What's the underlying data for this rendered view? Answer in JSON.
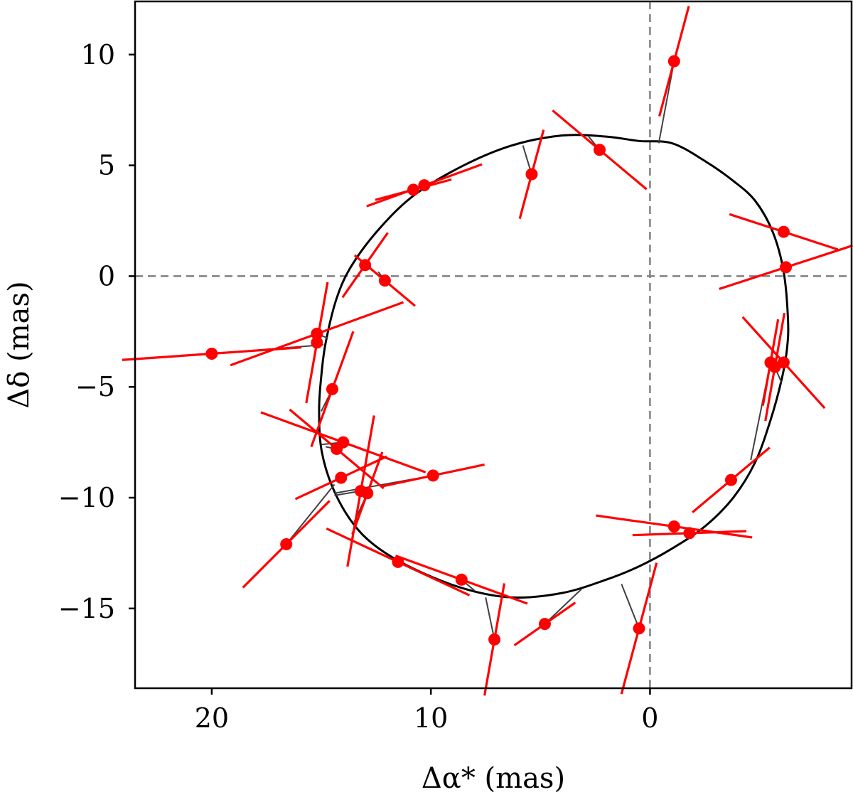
{
  "chart_data": {
    "type": "scatter",
    "xlabel": "Δα* (mas)",
    "ylabel": "Δδ (mas)",
    "x_inverted": true,
    "xlim": [
      23.5,
      -9.2
    ],
    "ylim": [
      -18.6,
      12.4
    ],
    "x_ticks": [
      20,
      10,
      0
    ],
    "x_tick_labels": [
      "20",
      "10",
      "0"
    ],
    "y_ticks": [
      10,
      5,
      0,
      -5,
      -10,
      -15
    ],
    "y_tick_labels": [
      "10",
      "5",
      "0",
      "−5",
      "−10",
      "−15"
    ],
    "reference_lines": [
      {
        "axis": "x",
        "value": 0,
        "style": "dashed",
        "color": "#808080"
      },
      {
        "axis": "y",
        "value": 0,
        "style": "dashed",
        "color": "#808080"
      }
    ],
    "grid": false,
    "colors": {
      "points": "#ff0000",
      "orbit": "#000000",
      "connectors": "#404040",
      "reference": "#808080"
    },
    "orbit": [
      [
        -1.0,
        6.0
      ],
      [
        -2.5,
        5.2
      ],
      [
        -3.8,
        4.3
      ],
      [
        -4.8,
        3.4
      ],
      [
        -5.6,
        2.0
      ],
      [
        -6.1,
        0.2
      ],
      [
        -6.3,
        -2.0
      ],
      [
        -6.25,
        -3.3
      ],
      [
        -6.0,
        -4.7
      ],
      [
        -5.5,
        -6.5
      ],
      [
        -4.8,
        -8.4
      ],
      [
        -3.8,
        -10.0
      ],
      [
        -2.5,
        -11.3
      ],
      [
        -1.0,
        -12.3
      ],
      [
        0.5,
        -13.1
      ],
      [
        2.0,
        -13.7
      ],
      [
        4.0,
        -14.3
      ],
      [
        6.3,
        -14.5
      ],
      [
        8.5,
        -14.1
      ],
      [
        10.8,
        -13.2
      ],
      [
        12.5,
        -12.2
      ],
      [
        13.6,
        -11.1
      ],
      [
        14.5,
        -9.5
      ],
      [
        15.0,
        -7.8
      ],
      [
        15.1,
        -6.0
      ],
      [
        15.0,
        -4.5
      ],
      [
        14.8,
        -3.0
      ],
      [
        14.3,
        -1.0
      ],
      [
        13.6,
        0.5
      ],
      [
        12.3,
        2.2
      ],
      [
        10.7,
        3.7
      ],
      [
        8.5,
        5.0
      ],
      [
        6.3,
        5.9
      ],
      [
        4.0,
        6.35
      ],
      [
        2.0,
        6.3
      ],
      [
        0.5,
        6.1
      ],
      [
        -1.0,
        6.0
      ]
    ],
    "points": [
      {
        "x": -1.1,
        "y": 9.7,
        "model": [
          -0.4,
          6.0
        ],
        "err_angle": 75,
        "err_len": 2.6
      },
      {
        "x": 2.3,
        "y": 5.7,
        "model": [
          2.8,
          6.3
        ],
        "err_angle": -40,
        "err_len": 2.8
      },
      {
        "x": 5.4,
        "y": 4.6,
        "model": [
          5.8,
          5.9
        ],
        "err_angle": 75,
        "err_len": 2.1
      },
      {
        "x": 10.3,
        "y": 4.1,
        "model": [
          10.3,
          4.1
        ],
        "err_angle": 20,
        "err_len": 2.8
      },
      {
        "x": 10.8,
        "y": 3.9,
        "model": [
          10.8,
          3.9
        ],
        "err_angle": 15,
        "err_len": 1.8
      },
      {
        "x": 13.0,
        "y": 0.5,
        "model": [
          13.0,
          0.5
        ],
        "err_angle": 55,
        "err_len": 1.8
      },
      {
        "x": 12.1,
        "y": -0.2,
        "model": [
          12.4,
          0.2
        ],
        "err_angle": -40,
        "err_len": 1.8
      },
      {
        "x": 15.2,
        "y": -2.6,
        "model": [
          14.7,
          -2.8
        ],
        "err_angle": 20,
        "err_len": 4.2
      },
      {
        "x": 15.2,
        "y": -3.0,
        "model": [
          15.2,
          -3.0
        ],
        "err_angle": 80,
        "err_len": 2.8
      },
      {
        "x": 20.0,
        "y": -3.5,
        "model": [
          14.9,
          -3.1
        ],
        "err_angle": 4,
        "err_len": 4.1
      },
      {
        "x": 14.5,
        "y": -5.1,
        "model": [
          15.0,
          -6.1
        ],
        "err_angle": 70,
        "err_len": 2.8
      },
      {
        "x": 14.0,
        "y": -7.5,
        "model": [
          15.0,
          -7.6
        ],
        "err_angle": -20,
        "err_len": 4.0
      },
      {
        "x": 14.3,
        "y": -7.8,
        "model": [
          14.8,
          -7.7
        ],
        "err_angle": -40,
        "err_len": 2.8
      },
      {
        "x": 14.1,
        "y": -9.1,
        "model": [
          14.1,
          -9.1
        ],
        "err_angle": 25,
        "err_len": 2.3
      },
      {
        "x": 13.2,
        "y": -9.7,
        "model": [
          14.4,
          -9.9
        ],
        "err_angle": 80,
        "err_len": 3.5
      },
      {
        "x": 12.9,
        "y": -9.8,
        "model": [
          13.5,
          -11.1
        ],
        "err_angle": 70,
        "err_len": 2.0
      },
      {
        "x": 9.9,
        "y": -9.0,
        "model": [
          14.4,
          -9.8
        ],
        "err_angle": 12,
        "err_len": 2.4
      },
      {
        "x": 16.6,
        "y": -12.1,
        "model": [
          14.4,
          -9.4
        ],
        "err_angle": 45,
        "err_len": 2.8
      },
      {
        "x": 11.5,
        "y": -12.9,
        "model": [
          11.7,
          -12.8
        ],
        "err_angle": -25,
        "err_len": 3.6
      },
      {
        "x": 8.6,
        "y": -13.7,
        "model": [
          8.0,
          -14.2
        ],
        "err_angle": -20,
        "err_len": 3.2
      },
      {
        "x": 7.1,
        "y": -16.4,
        "model": [
          7.5,
          -14.5
        ],
        "err_angle": 80,
        "err_len": 2.6
      },
      {
        "x": 4.8,
        "y": -15.7,
        "model": [
          3.1,
          -14.1
        ],
        "err_angle": 35,
        "err_len": 1.7
      },
      {
        "x": 0.5,
        "y": -15.9,
        "model": [
          1.3,
          -13.9
        ],
        "err_angle": 75,
        "err_len": 3.1
      },
      {
        "x": -1.1,
        "y": -11.3,
        "model": [
          -1.1,
          -11.3
        ],
        "err_angle": -8,
        "err_len": 3.6
      },
      {
        "x": -1.8,
        "y": -11.6,
        "model": [
          -1.8,
          -11.6
        ],
        "err_angle": 2,
        "err_len": 2.6
      },
      {
        "x": -3.7,
        "y": -9.2,
        "model": [
          -3.7,
          -9.2
        ],
        "err_angle": 40,
        "err_len": 2.3
      },
      {
        "x": -5.5,
        "y": -3.9,
        "model": [
          -4.6,
          -8.3
        ],
        "err_angle": 80,
        "err_len": 2.0
      },
      {
        "x": -5.7,
        "y": -4.1,
        "model": [
          -6.0,
          -4.8
        ],
        "err_angle": 80,
        "err_len": 2.5
      },
      {
        "x": -6.1,
        "y": -3.9,
        "model": [
          -6.1,
          -3.9
        ],
        "err_angle": -48,
        "err_len": 2.8
      },
      {
        "x": -6.1,
        "y": 2.0,
        "model": [
          -6.1,
          2.0
        ],
        "err_angle": -18,
        "err_len": 2.6
      },
      {
        "x": -6.2,
        "y": 0.4,
        "model": [
          -6.2,
          0.4
        ],
        "err_angle": 18,
        "err_len": 3.2
      }
    ]
  }
}
